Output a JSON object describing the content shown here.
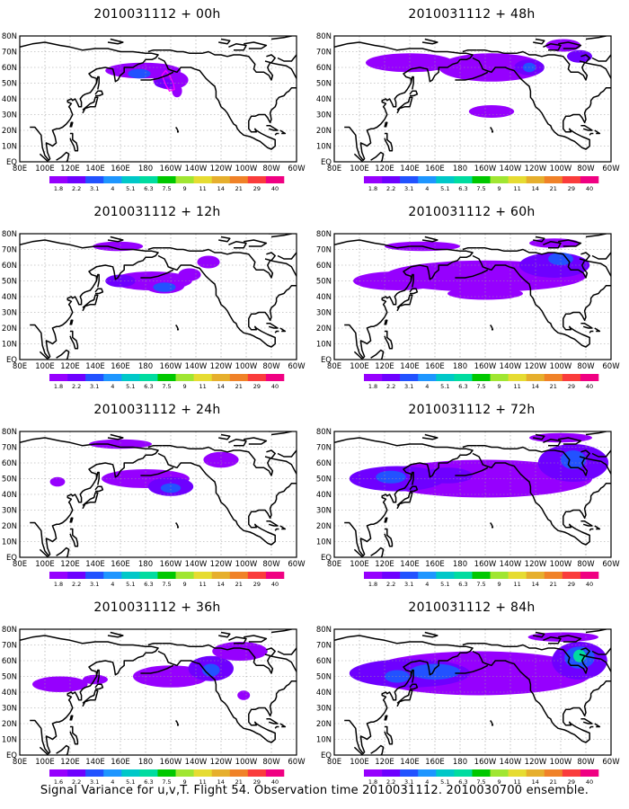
{
  "colors": {
    "shades": [
      "#9600fe",
      "#6e00ff",
      "#2252ff",
      "#1e96ff",
      "#00c8c8",
      "#00dca0",
      "#00c800",
      "#a0e632",
      "#e6dc32",
      "#e6af2d",
      "#f08228",
      "#fa3c3c",
      "#f00082"
    ],
    "contour": "#ff00ff",
    "coast": "#000000",
    "grid": "#9a9a9a"
  },
  "legend_ticks": [
    "1.8",
    "2.2",
    "3.1",
    "4",
    "5.1",
    "6.3",
    "7.5",
    "9",
    "11",
    "14",
    "21",
    "29",
    "40"
  ],
  "legend_ticks_last": [
    "1.6",
    "2.2",
    "3.1",
    "4",
    "5.1",
    "6.3",
    "7.5",
    "9",
    "11",
    "14",
    "21",
    "29",
    "40"
  ],
  "x_tick_labels": [
    "80E",
    "100E",
    "120E",
    "140E",
    "160E",
    "180",
    "160W",
    "140W",
    "120W",
    "100W",
    "80W",
    "60W"
  ],
  "y_tick_labels": [
    "EQ",
    "10N",
    "20N",
    "30N",
    "40N",
    "50N",
    "60N",
    "70N",
    "80N"
  ],
  "panels": [
    {
      "title": "2010031112 + 00h",
      "lead_h": 0
    },
    {
      "title": "2010031112 + 12h",
      "lead_h": 12
    },
    {
      "title": "2010031112 + 24h",
      "lead_h": 24
    },
    {
      "title": "2010031112 + 36h",
      "lead_h": 36
    },
    {
      "title": "2010031112 + 48h",
      "lead_h": 48
    },
    {
      "title": "2010031112 + 60h",
      "lead_h": 60
    },
    {
      "title": "2010031112 + 72h",
      "lead_h": 72
    },
    {
      "title": "2010031112 + 84h",
      "lead_h": 84
    }
  ],
  "caption": "Signal Variance for u,v,T. Flight 54. Observation time 2010031112. 2010030700 ensemble."
}
